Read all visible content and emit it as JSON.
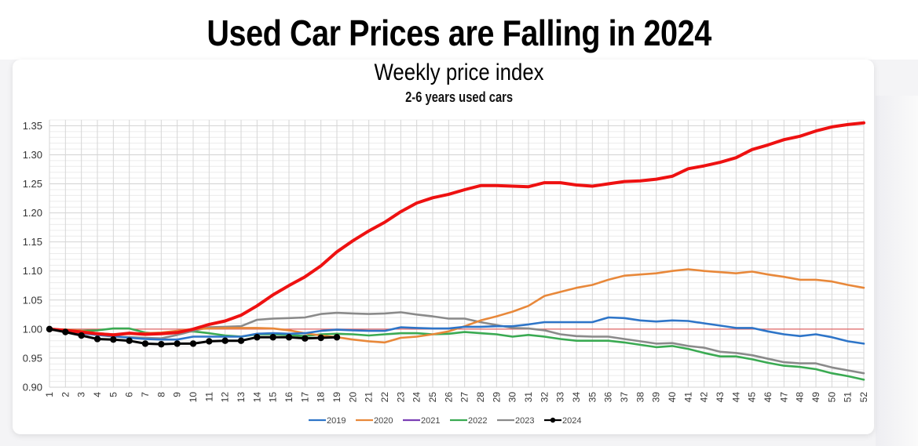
{
  "chart_data": {
    "type": "line",
    "title": "Used Car Prices are Falling in 2024",
    "subtitle": "Weekly price index",
    "subsubtitle": "2-6 years used cars",
    "xlabel": "",
    "ylabel": "",
    "x": [
      1,
      2,
      3,
      4,
      5,
      6,
      7,
      8,
      9,
      10,
      11,
      12,
      13,
      14,
      15,
      16,
      17,
      18,
      19,
      20,
      21,
      22,
      23,
      24,
      25,
      26,
      27,
      28,
      29,
      30,
      31,
      32,
      33,
      34,
      35,
      36,
      37,
      38,
      39,
      40,
      41,
      42,
      43,
      44,
      45,
      46,
      47,
      48,
      49,
      50,
      51,
      52
    ],
    "x_tick_labels": [
      "1",
      "2",
      "3",
      "4",
      "5",
      "6",
      "7",
      "8",
      "9",
      "10",
      "11",
      "12",
      "13",
      "14",
      "15",
      "16",
      "17",
      "18",
      "19",
      "20",
      "21",
      "22",
      "23",
      "24",
      "25",
      "26",
      "27",
      "28",
      "29",
      "30",
      "31",
      "32",
      "33",
      "34",
      "35",
      "36",
      "37",
      "38",
      "39",
      "40",
      "41",
      "42",
      "43",
      "44",
      "45",
      "46",
      "47",
      "48",
      "49",
      "50",
      "51",
      "52"
    ],
    "y_tick_labels": [
      "0.90",
      "0.95",
      "1.00",
      "1.05",
      "1.10",
      "1.15",
      "1.20",
      "1.25",
      "1.30",
      "1.35"
    ],
    "ylim": [
      0.9,
      1.36
    ],
    "xlim": [
      1,
      52
    ],
    "grid": true,
    "reference_line": {
      "value": 1.0,
      "color": "#e06666"
    },
    "legend_position": "bottom",
    "series": [
      {
        "name": "2019",
        "color": "#2e75c8",
        "values": [
          1.0,
          0.998,
          0.993,
          0.99,
          0.988,
          0.985,
          0.983,
          0.982,
          0.982,
          0.987,
          0.987,
          0.987,
          0.987,
          0.992,
          0.993,
          0.992,
          0.993,
          0.997,
          0.999,
          0.998,
          0.997,
          0.997,
          1.003,
          1.002,
          1.001,
          1.001,
          1.004,
          1.004,
          1.005,
          1.005,
          1.008,
          1.012,
          1.012,
          1.012,
          1.012,
          1.02,
          1.019,
          1.015,
          1.013,
          1.015,
          1.014,
          1.01,
          1.006,
          1.002,
          1.002,
          0.996,
          0.991,
          0.988,
          0.991,
          0.986,
          0.979,
          0.975
        ]
      },
      {
        "name": "2020",
        "color": "#e8883a",
        "values": [
          1.0,
          0.999,
          0.997,
          0.993,
          0.991,
          0.992,
          0.993,
          0.994,
          0.997,
          1.0,
          1.001,
          1.002,
          1.002,
          1.002,
          1.001,
          0.998,
          0.993,
          0.989,
          0.986,
          0.982,
          0.979,
          0.977,
          0.985,
          0.987,
          0.991,
          0.996,
          1.005,
          1.015,
          1.022,
          1.03,
          1.04,
          1.057,
          1.064,
          1.071,
          1.076,
          1.085,
          1.092,
          1.094,
          1.096,
          1.1,
          1.103,
          1.1,
          1.098,
          1.096,
          1.099,
          1.094,
          1.09,
          1.085,
          1.085,
          1.082,
          1.076,
          1.071
        ]
      },
      {
        "name": "2021",
        "color": "#ee1111",
        "legend_color": "#7b3fb5",
        "values": [
          1.0,
          0.998,
          0.995,
          0.992,
          0.99,
          0.993,
          0.991,
          0.992,
          0.994,
          1.0,
          1.008,
          1.014,
          1.024,
          1.04,
          1.059,
          1.075,
          1.09,
          1.109,
          1.133,
          1.152,
          1.169,
          1.184,
          1.202,
          1.217,
          1.226,
          1.232,
          1.24,
          1.247,
          1.247,
          1.246,
          1.245,
          1.252,
          1.252,
          1.248,
          1.246,
          1.25,
          1.254,
          1.255,
          1.258,
          1.263,
          1.276,
          1.281,
          1.287,
          1.295,
          1.309,
          1.317,
          1.326,
          1.332,
          1.341,
          1.348,
          1.352,
          1.355
        ]
      },
      {
        "name": "2022",
        "color": "#3aaa52",
        "values": [
          1.0,
          0.999,
          0.997,
          0.998,
          1.001,
          1.001,
          0.994,
          0.992,
          0.995,
          0.996,
          0.993,
          0.989,
          0.987,
          0.991,
          0.991,
          0.99,
          0.988,
          0.991,
          0.992,
          0.991,
          0.989,
          0.991,
          0.993,
          0.993,
          0.991,
          0.992,
          0.995,
          0.993,
          0.991,
          0.987,
          0.99,
          0.987,
          0.983,
          0.98,
          0.98,
          0.98,
          0.977,
          0.973,
          0.969,
          0.971,
          0.966,
          0.959,
          0.953,
          0.953,
          0.948,
          0.942,
          0.937,
          0.935,
          0.931,
          0.924,
          0.919,
          0.913
        ]
      },
      {
        "name": "2023",
        "color": "#8a8a8a",
        "values": [
          1.0,
          0.997,
          0.993,
          0.99,
          0.987,
          0.986,
          0.985,
          0.984,
          0.99,
          0.997,
          1.003,
          1.004,
          1.005,
          1.016,
          1.018,
          1.019,
          1.02,
          1.026,
          1.028,
          1.027,
          1.026,
          1.027,
          1.029,
          1.025,
          1.022,
          1.018,
          1.018,
          1.012,
          1.007,
          1.002,
          1.001,
          0.998,
          0.991,
          0.988,
          0.987,
          0.987,
          0.983,
          0.979,
          0.975,
          0.976,
          0.971,
          0.968,
          0.961,
          0.959,
          0.955,
          0.949,
          0.943,
          0.941,
          0.941,
          0.934,
          0.929,
          0.924
        ]
      },
      {
        "name": "2024",
        "color": "#000000",
        "marker": "circle",
        "values": [
          1.0,
          0.995,
          0.989,
          0.983,
          0.982,
          0.98,
          0.975,
          0.974,
          0.975,
          0.975,
          0.979,
          0.98,
          0.98,
          0.986,
          0.986,
          0.986,
          0.984,
          0.985,
          0.986
        ]
      }
    ]
  }
}
